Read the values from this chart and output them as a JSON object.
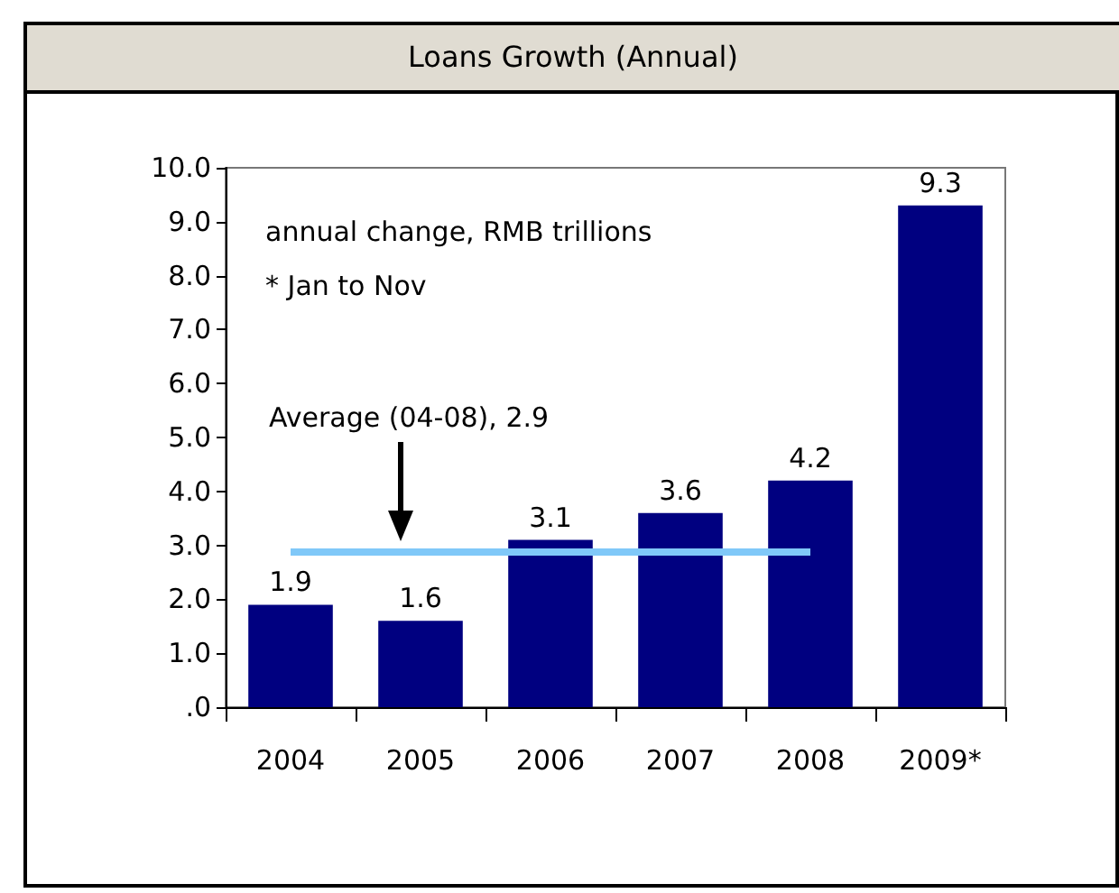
{
  "chart_data": {
    "type": "bar",
    "title": "Loans Growth (Annual)",
    "categories": [
      "2004",
      "2005",
      "2006",
      "2007",
      "2008",
      "2009*"
    ],
    "values": [
      1.9,
      1.6,
      3.1,
      3.6,
      4.2,
      9.3
    ],
    "color": "#000080",
    "data_labels": true,
    "ylim": [
      0,
      10
    ],
    "yticks": [
      {
        "value": 0,
        "label": ".0"
      },
      {
        "value": 1,
        "label": "1.0"
      },
      {
        "value": 2,
        "label": "2.0"
      },
      {
        "value": 3,
        "label": "3.0"
      },
      {
        "value": 4,
        "label": "4.0"
      },
      {
        "value": 5,
        "label": "5.0"
      },
      {
        "value": 6,
        "label": "6.0"
      },
      {
        "value": 7,
        "label": "7.0"
      },
      {
        "value": 8,
        "label": "8.0"
      },
      {
        "value": 9,
        "label": "9.0"
      },
      {
        "value": 10,
        "label": "10.0"
      }
    ],
    "grid": false,
    "ref_lines": [
      {
        "axis": "y",
        "value": 2.9,
        "color": "#80c8f8"
      }
    ],
    "annotations": [
      "annual change, RMB trillions",
      "* Jan to Nov",
      "Average (04-08), 2.9"
    ]
  }
}
